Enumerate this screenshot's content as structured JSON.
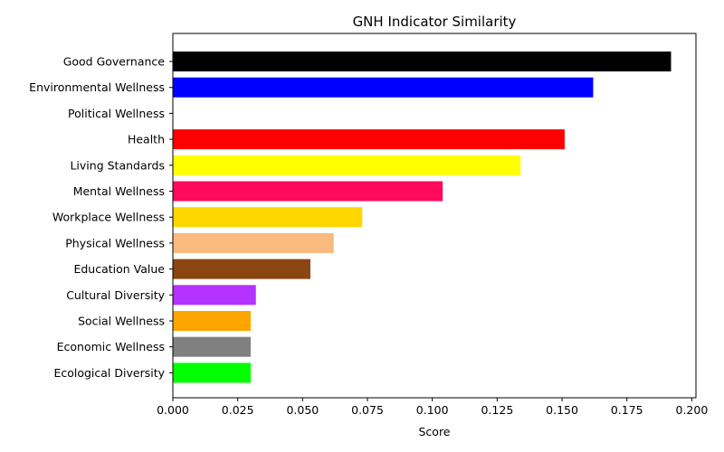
{
  "chart_data": {
    "type": "bar",
    "orientation": "horizontal",
    "title": "GNH Indicator Similarity",
    "xlabel": "Score",
    "ylabel": "",
    "xlim": [
      0,
      0.2016
    ],
    "xticks": [
      "0.000",
      "0.025",
      "0.050",
      "0.075",
      "0.100",
      "0.125",
      "0.150",
      "0.175",
      "0.200"
    ],
    "grid": false,
    "legend": "none",
    "categories": [
      "Good Governance",
      "Environmental Wellness",
      "Political Wellness",
      "Health",
      "Living Standards",
      "Mental Wellness",
      "Workplace Wellness",
      "Physical Wellness",
      "Education Value",
      "Cultural Diversity",
      "Social Wellness",
      "Economic Wellness",
      "Ecological Diversity"
    ],
    "values": [
      0.192,
      0.162,
      0.0,
      0.151,
      0.134,
      0.104,
      0.073,
      0.062,
      0.053,
      0.032,
      0.03,
      0.03,
      0.03
    ],
    "colors": [
      "#000000",
      "#0000ff",
      "#ffffff",
      "#ff0000",
      "#ffff00",
      "#ff0a5c",
      "#ffd700",
      "#f9b97f",
      "#8b4513",
      "#b533ff",
      "#ffa500",
      "#808080",
      "#00ff00"
    ]
  }
}
